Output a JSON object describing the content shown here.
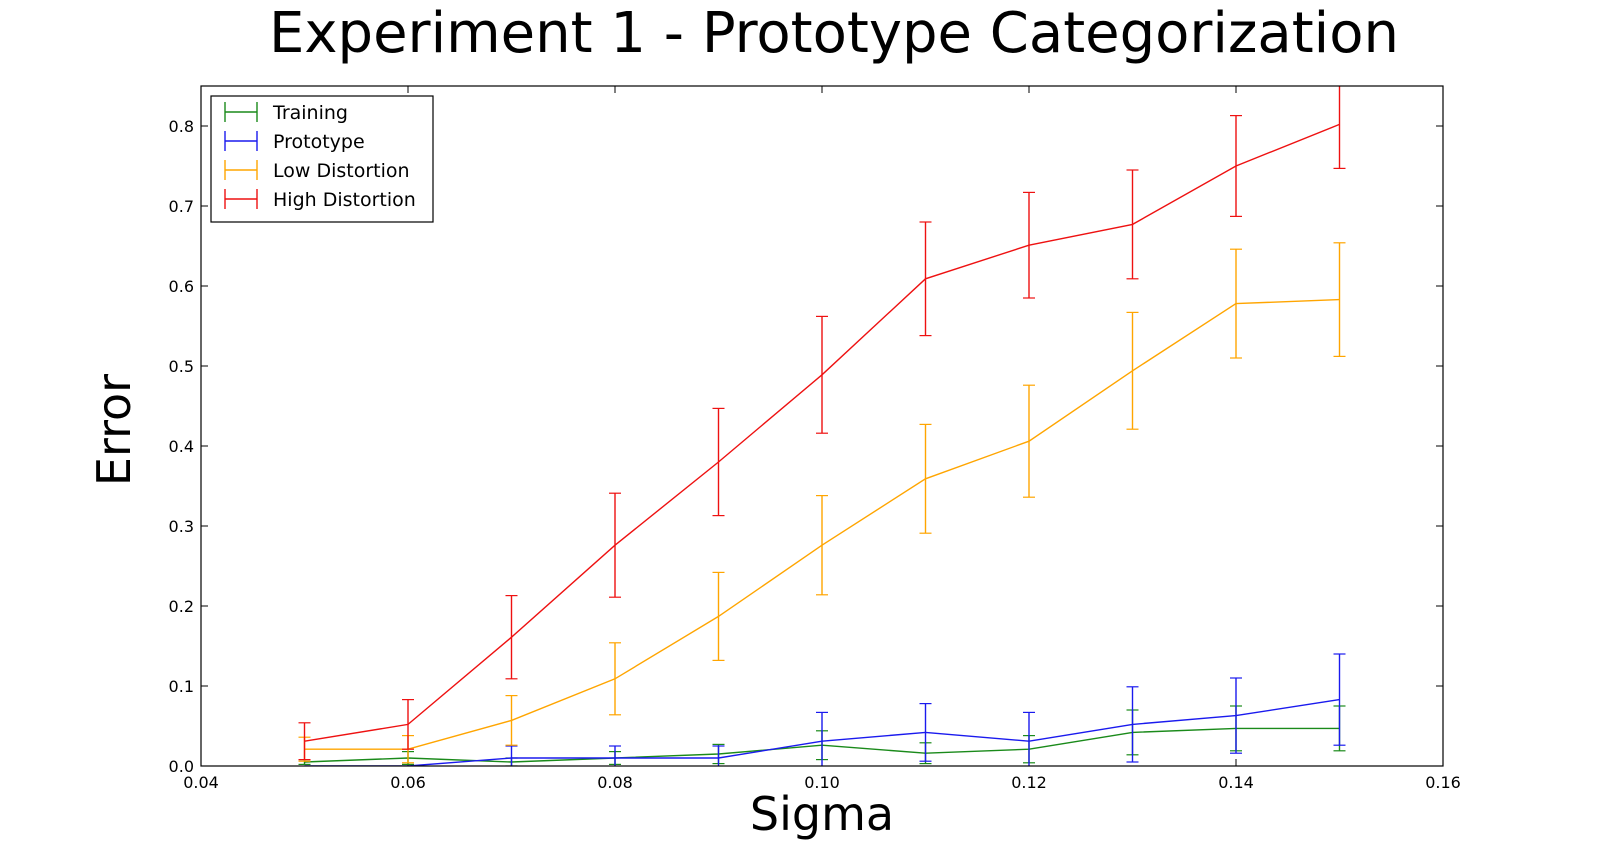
{
  "chart_data": {
    "type": "line",
    "title": "Experiment 1 - Prototype Categorization",
    "xlabel": "Sigma",
    "ylabel": "Error",
    "xlim": [
      0.04,
      0.16
    ],
    "ylim": [
      0.0,
      0.85
    ],
    "xticks": [
      0.04,
      0.06,
      0.08,
      0.1,
      0.12,
      0.14,
      0.16
    ],
    "xtick_labels": [
      "0.04",
      "0.06",
      "0.08",
      "0.10",
      "0.12",
      "0.14",
      "0.16"
    ],
    "yticks": [
      0.0,
      0.1,
      0.2,
      0.3,
      0.4,
      0.5,
      0.6,
      0.7,
      0.8
    ],
    "ytick_labels": [
      "0.0",
      "0.1",
      "0.2",
      "0.3",
      "0.4",
      "0.5",
      "0.6",
      "0.7",
      "0.8"
    ],
    "grid": false,
    "legend_position": "top-left",
    "x": [
      0.05,
      0.06,
      0.07,
      0.08,
      0.09,
      0.1,
      0.11,
      0.12,
      0.13,
      0.14,
      0.15
    ],
    "series": [
      {
        "name": "Training",
        "color": "#1a8a1a",
        "values": [
          0.005,
          0.01,
          0.005,
          0.01,
          0.015,
          0.026,
          0.016,
          0.021,
          0.042,
          0.047,
          0.047
        ],
        "errors": [
          0.003,
          0.008,
          0.005,
          0.008,
          0.012,
          0.018,
          0.013,
          0.017,
          0.028,
          0.028,
          0.028
        ]
      },
      {
        "name": "Prototype",
        "color": "#1a1aee",
        "values": [
          0.0,
          0.0,
          0.01,
          0.01,
          0.01,
          0.031,
          0.042,
          0.031,
          0.052,
          0.063,
          0.083
        ],
        "errors": [
          0.0,
          0.0,
          0.015,
          0.015,
          0.015,
          0.036,
          0.036,
          0.036,
          0.047,
          0.047,
          0.057
        ]
      },
      {
        "name": "Low Distortion",
        "color": "#ffa500",
        "values": [
          0.021,
          0.021,
          0.057,
          0.109,
          0.187,
          0.276,
          0.359,
          0.406,
          0.494,
          0.578,
          0.583
        ],
        "errors": [
          0.015,
          0.017,
          0.031,
          0.045,
          0.055,
          0.062,
          0.068,
          0.07,
          0.073,
          0.068,
          0.071
        ]
      },
      {
        "name": "High Distortion",
        "color": "#ee1111",
        "values": [
          0.031,
          0.052,
          0.161,
          0.276,
          0.38,
          0.489,
          0.609,
          0.651,
          0.677,
          0.75,
          0.802
        ],
        "errors": [
          0.023,
          0.031,
          0.052,
          0.065,
          0.067,
          0.073,
          0.071,
          0.066,
          0.068,
          0.063,
          0.055
        ]
      }
    ]
  }
}
